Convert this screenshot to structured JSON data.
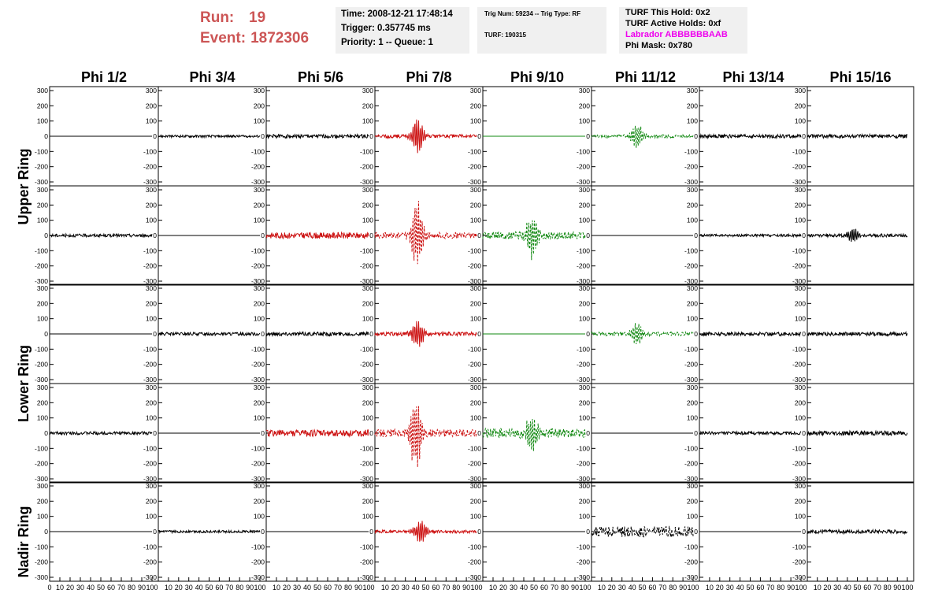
{
  "run": {
    "run_label": "Run:",
    "run_value": "19",
    "event_label": "Event:",
    "event_value": "1872306"
  },
  "info_time": {
    "time": "Time: 2008-12-21 17:48:14",
    "trigger": "Trigger: 0.357745 ms",
    "priority": "Priority: 1 -- Queue: 1"
  },
  "info_trig": {
    "trig": "Trig Num: 59234 -- Trig Type: RF",
    "turf": "TURF: 190315"
  },
  "info_turf": {
    "this_hold": "TURF This Hold: 0x2",
    "active_holds": "TURF Active Holds: 0xf",
    "labrador": "Labrador ABBBBBBAAB",
    "phi_mask": "Phi Mask: 0x780"
  },
  "colors": {
    "normal": "#000000",
    "triggered": "#cc1111",
    "masked": "#118811",
    "labrador": "#ee00ee",
    "run_text": "#cc5555"
  },
  "chart_data": {
    "type": "line",
    "columns": [
      "Phi 1/2",
      "Phi 3/4",
      "Phi 5/6",
      "Phi 7/8",
      "Phi 9/10",
      "Phi 11/12",
      "Phi 13/14",
      "Phi 15/16"
    ],
    "ring_labels": [
      "Upper Ring",
      "Lower Ring",
      "Nadir Ring"
    ],
    "ylim": [
      -300,
      300
    ],
    "yticks": [
      -300,
      -200,
      -100,
      0,
      100,
      200,
      300
    ],
    "xlim": [
      0,
      100
    ],
    "x_tick_labels": [
      [
        "0",
        "10",
        "20",
        "30",
        "40",
        "50",
        "60",
        "70",
        "80",
        "90",
        "100"
      ],
      [
        "10",
        "20",
        "30",
        "40",
        "50",
        "60",
        "70",
        "80",
        "90",
        "100"
      ]
    ],
    "panels": [
      [
        {
          "amp": 0,
          "burst": 0,
          "center": 0,
          "style": "solid",
          "color": "normal"
        },
        {
          "amp": 8,
          "burst": 0,
          "center": 0,
          "style": "solid",
          "color": "normal"
        },
        {
          "amp": 12,
          "burst": 0,
          "center": 0,
          "style": "solid",
          "color": "normal"
        },
        {
          "amp": 12,
          "burst": 140,
          "center": 42,
          "style": "solid",
          "color": "triggered"
        },
        {
          "amp": 0,
          "burst": 0,
          "center": 0,
          "style": "solid",
          "color": "masked"
        },
        {
          "amp": 10,
          "burst": 90,
          "center": 45,
          "style": "dashed",
          "color": "masked"
        },
        {
          "amp": 12,
          "burst": 0,
          "center": 0,
          "style": "solid",
          "color": "normal"
        },
        {
          "amp": 12,
          "burst": 0,
          "center": 0,
          "style": "solid",
          "color": "normal"
        }
      ],
      [
        {
          "amp": 10,
          "burst": 0,
          "center": 0,
          "style": "solid",
          "color": "normal"
        },
        {
          "amp": 0,
          "burst": 0,
          "center": 0,
          "style": "solid",
          "color": "normal"
        },
        {
          "amp": 20,
          "burst": 0,
          "center": 0,
          "style": "solid",
          "color": "triggered"
        },
        {
          "amp": 20,
          "burst": 270,
          "center": 42,
          "style": "dashed",
          "color": "triggered"
        },
        {
          "amp": 25,
          "burst": 160,
          "center": 48,
          "style": "dashed",
          "color": "masked"
        },
        {
          "amp": 0,
          "burst": 0,
          "center": 0,
          "style": "solid",
          "color": "normal"
        },
        {
          "amp": 8,
          "burst": 0,
          "center": 0,
          "style": "solid",
          "color": "normal"
        },
        {
          "amp": 10,
          "burst": 55,
          "center": 45,
          "style": "solid",
          "color": "normal"
        }
      ],
      [
        {
          "amp": 0,
          "burst": 0,
          "center": 0,
          "style": "solid",
          "color": "normal"
        },
        {
          "amp": 10,
          "burst": 0,
          "center": 0,
          "style": "solid",
          "color": "normal"
        },
        {
          "amp": 12,
          "burst": 0,
          "center": 0,
          "style": "solid",
          "color": "normal"
        },
        {
          "amp": 12,
          "burst": 115,
          "center": 42,
          "style": "solid",
          "color": "triggered"
        },
        {
          "amp": 0,
          "burst": 0,
          "center": 0,
          "style": "solid",
          "color": "masked"
        },
        {
          "amp": 12,
          "burst": 95,
          "center": 45,
          "style": "dashed",
          "color": "masked"
        },
        {
          "amp": 12,
          "burst": 0,
          "center": 0,
          "style": "solid",
          "color": "normal"
        },
        {
          "amp": 12,
          "burst": 0,
          "center": 0,
          "style": "solid",
          "color": "normal"
        }
      ],
      [
        {
          "amp": 10,
          "burst": 0,
          "center": 0,
          "style": "solid",
          "color": "normal"
        },
        {
          "amp": 0,
          "burst": 0,
          "center": 0,
          "style": "solid",
          "color": "normal"
        },
        {
          "amp": 22,
          "burst": 0,
          "center": 0,
          "style": "solid",
          "color": "triggered"
        },
        {
          "amp": 25,
          "burst": 280,
          "center": 40,
          "style": "dashed",
          "color": "triggered"
        },
        {
          "amp": 30,
          "burst": 140,
          "center": 48,
          "style": "dashed",
          "color": "masked"
        },
        {
          "amp": 0,
          "burst": 0,
          "center": 0,
          "style": "solid",
          "color": "normal"
        },
        {
          "amp": 10,
          "burst": 0,
          "center": 0,
          "style": "solid",
          "color": "normal"
        },
        {
          "amp": 15,
          "burst": 0,
          "center": 0,
          "style": "solid",
          "color": "normal"
        }
      ],
      [
        {
          "amp": 0,
          "burst": 0,
          "center": 0,
          "style": "solid",
          "color": "normal"
        },
        {
          "amp": 8,
          "burst": 0,
          "center": 0,
          "style": "solid",
          "color": "normal"
        },
        {
          "amp": 0,
          "burst": 0,
          "center": 0,
          "style": "solid",
          "color": "normal"
        },
        {
          "amp": 10,
          "burst": 100,
          "center": 45,
          "style": "solid",
          "color": "triggered"
        },
        {
          "amp": 0,
          "burst": 0,
          "center": 0,
          "style": "solid",
          "color": "normal"
        },
        {
          "amp": 35,
          "burst": 0,
          "center": 0,
          "style": "dashed",
          "color": "normal"
        },
        {
          "amp": 0,
          "burst": 0,
          "center": 0,
          "style": "solid",
          "color": "normal"
        },
        {
          "amp": 12,
          "burst": 0,
          "center": 0,
          "style": "solid",
          "color": "normal"
        }
      ]
    ]
  }
}
